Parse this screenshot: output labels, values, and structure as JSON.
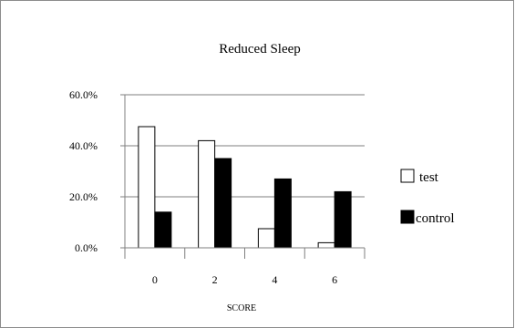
{
  "chart_data": {
    "type": "bar",
    "title": "Reduced Sleep",
    "xlabel": "SCORE",
    "ylabel": "",
    "categories": [
      "0",
      "2",
      "4",
      "6"
    ],
    "series": [
      {
        "name": "test",
        "values": [
          47.5,
          42.0,
          7.5,
          2.0
        ],
        "color": "#ffffff"
      },
      {
        "name": "control",
        "values": [
          14.0,
          35.0,
          27.0,
          22.0
        ],
        "color": "#000000"
      }
    ],
    "ylim": [
      0,
      60
    ],
    "yticks": [
      0,
      20,
      40,
      60
    ],
    "ytick_labels": [
      "0.0%",
      "20.0%",
      "40.0%",
      "60.0%"
    ],
    "grid": true,
    "legend_position": "right"
  }
}
